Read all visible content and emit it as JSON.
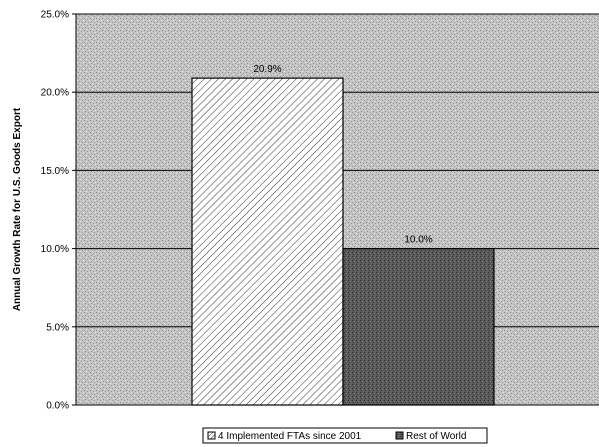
{
  "chart_data": {
    "type": "bar",
    "title": "",
    "xlabel": "",
    "ylabel": "Annual Growth Rate for U.S. Goods Export",
    "ylim": [
      0,
      25
    ],
    "y_ticks": [
      "0.0%",
      "5.0%",
      "10.0%",
      "15.0%",
      "20.0%",
      "25.0%"
    ],
    "y_tick_values": [
      0,
      5,
      10,
      15,
      20,
      25
    ],
    "grid": true,
    "legend_position": "bottom",
    "series": [
      {
        "name": "4 Implemented FTAs since 2001",
        "values": [
          20.9
        ],
        "label": "20.9%",
        "color": "#ffffff",
        "pattern": "diagonal-hatch"
      },
      {
        "name": "Rest of World",
        "values": [
          10.0
        ],
        "label": "10.0%",
        "color": "#555555",
        "pattern": "dark-stipple"
      }
    ],
    "plot_background": "#bdbdbd"
  }
}
